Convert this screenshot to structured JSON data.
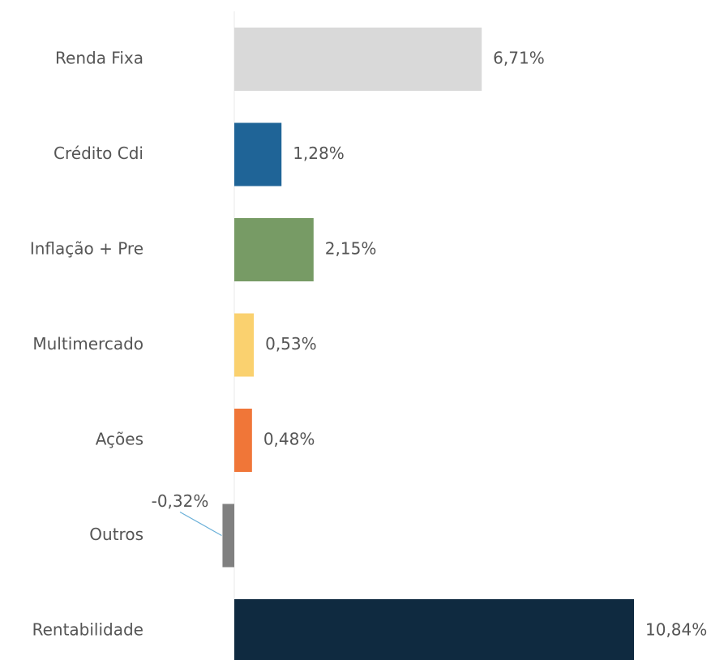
{
  "chart_data": {
    "type": "bar",
    "orientation": "horizontal",
    "categories": [
      "Renda Fixa",
      "Crédito Cdi",
      "Inflação + Pre",
      "Multimercado",
      "Ações",
      "Outros",
      "Rentabilidade"
    ],
    "values": [
      6.71,
      1.28,
      2.15,
      0.53,
      0.48,
      -0.32,
      10.84
    ],
    "value_labels": [
      "6,71%",
      "1,28%",
      "2,15%",
      "0,53%",
      "0,48%",
      "-0,32%",
      "10,84%"
    ],
    "colors": [
      "#d9d9d9",
      "#1f6497",
      "#779b65",
      "#fad16f",
      "#f07638",
      "#808080",
      "#0f2a40"
    ]
  }
}
